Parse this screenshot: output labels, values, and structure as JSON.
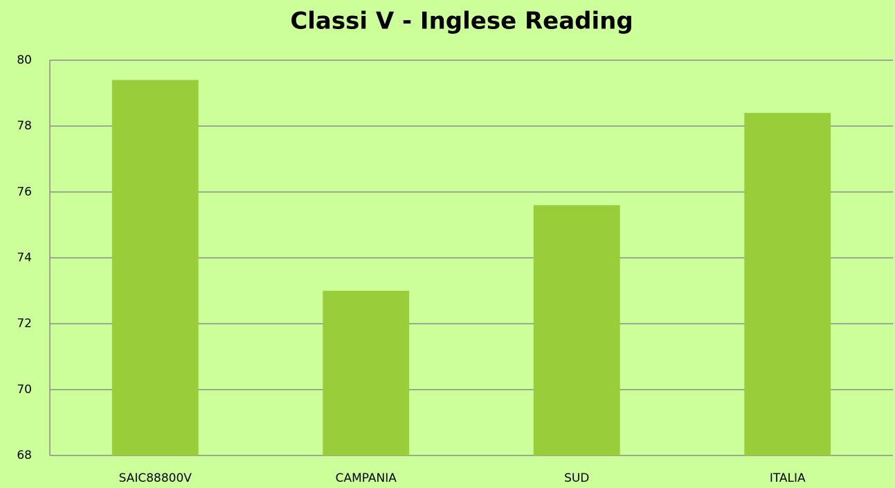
{
  "chart_data": {
    "type": "bar",
    "title": "Classi V - Inglese Reading",
    "categories": [
      "SAIC88800V",
      "CAMPANIA",
      "SUD",
      "ITALIA"
    ],
    "values": [
      79.4,
      73.0,
      75.6,
      78.4
    ],
    "color": "#9acd3a",
    "ylim": [
      68,
      80
    ],
    "yticks": [
      68,
      70,
      72,
      74,
      76,
      78,
      80
    ],
    "grid": true
  }
}
